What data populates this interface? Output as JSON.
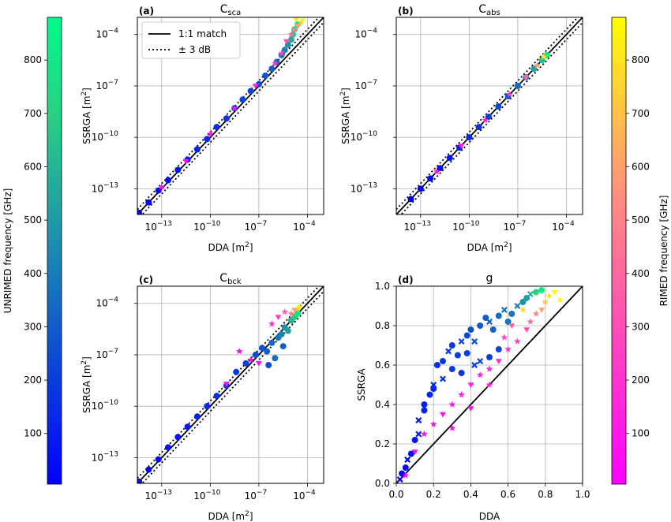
{
  "chart_data": [
    {
      "panel": "(a)",
      "type": "scatter",
      "title": "C",
      "title_sub": "sca",
      "xlabel": "DDA   [m",
      "xlabel_sup": "2",
      "ylabel": "SSRGA   [m",
      "ylabel_sup": "2",
      "scale": "log",
      "xlim": [
        -14.5,
        -3
      ],
      "ylim": [
        -14.5,
        -3
      ],
      "ticks": [
        {
          "exp": -13,
          "base": "10",
          "sup": "−13"
        },
        {
          "exp": -10,
          "base": "10",
          "sup": "−10"
        },
        {
          "exp": -7,
          "base": "10",
          "sup": "−7"
        },
        {
          "exp": -4,
          "base": "10",
          "sup": "−4"
        }
      ],
      "grid": true,
      "legend": {
        "position": "top-left",
        "entries": [
          {
            "label": "1:1 match",
            "style": "solid"
          },
          {
            "label": "± 3 dB",
            "style": "dotted"
          }
        ]
      },
      "series": [
        {
          "subset": "UNRIMED",
          "color_scale": "unrimed",
          "log10_points": [
            [
              -14.4,
              -14.4,
              5
            ],
            [
              -13.8,
              -13.8,
              20
            ],
            [
              -13.2,
              -13.1,
              35
            ],
            [
              -12.6,
              -12.5,
              50
            ],
            [
              -12.0,
              -11.9,
              70
            ],
            [
              -11.4,
              -11.3,
              90
            ],
            [
              -10.8,
              -10.7,
              110
            ],
            [
              -10.2,
              -10.1,
              130
            ],
            [
              -9.6,
              -9.4,
              150
            ],
            [
              -9.0,
              -8.9,
              170
            ],
            [
              -8.5,
              -8.3,
              190
            ],
            [
              -8.0,
              -7.8,
              210
            ],
            [
              -7.5,
              -7.3,
              230
            ],
            [
              -7.0,
              -6.9,
              250
            ],
            [
              -6.6,
              -6.4,
              270
            ],
            [
              -6.2,
              -6.0,
              300
            ],
            [
              -5.9,
              -5.6,
              330
            ],
            [
              -5.6,
              -5.2,
              370
            ],
            [
              -5.4,
              -4.9,
              420
            ],
            [
              -5.2,
              -4.6,
              480
            ],
            [
              -5.0,
              -4.3,
              560
            ],
            [
              -4.9,
              -4.0,
              640
            ],
            [
              -4.8,
              -3.7,
              740
            ],
            [
              -4.6,
              -3.4,
              840
            ]
          ]
        },
        {
          "subset": "RIMED",
          "color_scale": "rimed",
          "log10_points": [
            [
              -13.0,
              -12.9,
              30
            ],
            [
              -11.5,
              -11.4,
              60
            ],
            [
              -10.0,
              -9.8,
              90
            ],
            [
              -8.5,
              -8.3,
              120
            ],
            [
              -7.2,
              -7.0,
              160
            ],
            [
              -6.0,
              -5.7,
              200
            ],
            [
              -5.6,
              -5.1,
              260
            ],
            [
              -5.3,
              -4.4,
              320
            ],
            [
              -5.0,
              -4.0,
              400
            ],
            [
              -4.8,
              -3.7,
              500
            ],
            [
              -4.6,
              -3.5,
              600
            ],
            [
              -4.4,
              -3.3,
              700
            ],
            [
              -4.7,
              -3.1,
              800
            ],
            [
              -4.3,
              -3.2,
              860
            ]
          ]
        }
      ]
    },
    {
      "panel": "(b)",
      "type": "scatter",
      "title": "C",
      "title_sub": "abs",
      "xlabel": "DDA   [m",
      "xlabel_sup": "2",
      "ylabel": "SSRGA   [m",
      "ylabel_sup": "2",
      "scale": "log",
      "xlim": [
        -14.5,
        -3
      ],
      "ylim": [
        -14.5,
        -3
      ],
      "ticks": [
        {
          "exp": -13,
          "base": "10",
          "sup": "−13"
        },
        {
          "exp": -10,
          "base": "10",
          "sup": "−10"
        },
        {
          "exp": -7,
          "base": "10",
          "sup": "−7"
        },
        {
          "exp": -4,
          "base": "10",
          "sup": "−4"
        }
      ],
      "grid": true,
      "series": [
        {
          "subset": "UNRIMED",
          "color_scale": "unrimed",
          "log10_points": [
            [
              -13.6,
              -13.6,
              5
            ],
            [
              -13.0,
              -13.0,
              20
            ],
            [
              -12.4,
              -12.4,
              40
            ],
            [
              -11.8,
              -11.8,
              60
            ],
            [
              -11.2,
              -11.2,
              80
            ],
            [
              -10.6,
              -10.6,
              100
            ],
            [
              -10.0,
              -10.0,
              130
            ],
            [
              -9.4,
              -9.4,
              160
            ],
            [
              -8.8,
              -8.8,
              200
            ],
            [
              -8.2,
              -8.2,
              240
            ],
            [
              -7.6,
              -7.6,
              290
            ],
            [
              -7.0,
              -7.0,
              350
            ],
            [
              -6.5,
              -6.5,
              420
            ],
            [
              -6.0,
              -6.0,
              520
            ],
            [
              -5.5,
              -5.5,
              640
            ],
            [
              -5.2,
              -5.2,
              760
            ]
          ]
        },
        {
          "subset": "RIMED",
          "color_scale": "rimed",
          "log10_points": [
            [
              -12.0,
              -12.0,
              40
            ],
            [
              -10.5,
              -10.5,
              80
            ],
            [
              -9.0,
              -9.0,
              140
            ],
            [
              -7.5,
              -7.5,
              240
            ],
            [
              -6.5,
              -6.5,
              400
            ],
            [
              -5.8,
              -5.8,
              600
            ],
            [
              -5.4,
              -5.3,
              800
            ]
          ]
        }
      ]
    },
    {
      "panel": "(c)",
      "type": "scatter",
      "title": "C",
      "title_sub": "bck",
      "xlabel": "DDA   [m",
      "xlabel_sup": "2",
      "ylabel": "SSRGA   [m",
      "ylabel_sup": "2",
      "scale": "log",
      "xlim": [
        -14.5,
        -3
      ],
      "ylim": [
        -14.5,
        -3
      ],
      "ticks": [
        {
          "exp": -13,
          "base": "10",
          "sup": "−13"
        },
        {
          "exp": -10,
          "base": "10",
          "sup": "−10"
        },
        {
          "exp": -7,
          "base": "10",
          "sup": "−7"
        },
        {
          "exp": -4,
          "base": "10",
          "sup": "−4"
        }
      ],
      "grid": true,
      "series": [
        {
          "subset": "UNRIMED",
          "color_scale": "unrimed",
          "log10_points": [
            [
              -14.4,
              -14.4,
              5
            ],
            [
              -13.8,
              -13.7,
              20
            ],
            [
              -13.2,
              -13.1,
              35
            ],
            [
              -12.6,
              -12.4,
              50
            ],
            [
              -12.0,
              -11.8,
              70
            ],
            [
              -11.4,
              -11.2,
              90
            ],
            [
              -10.8,
              -10.6,
              110
            ],
            [
              -10.2,
              -10.0,
              130
            ],
            [
              -9.6,
              -9.4,
              150
            ],
            [
              -9.0,
              -8.8,
              170
            ],
            [
              -8.4,
              -8.0,
              190
            ],
            [
              -7.8,
              -7.5,
              210
            ],
            [
              -7.2,
              -7.0,
              240
            ],
            [
              -6.8,
              -6.6,
              270
            ],
            [
              -6.5,
              -6.8,
              300
            ],
            [
              -6.2,
              -6.3,
              330
            ],
            [
              -6.0,
              -7.2,
              360
            ],
            [
              -5.8,
              -6.0,
              390
            ],
            [
              -5.6,
              -5.8,
              420
            ],
            [
              -5.4,
              -5.4,
              470
            ],
            [
              -5.2,
              -5.6,
              520
            ],
            [
              -5.0,
              -5.0,
              600
            ],
            [
              -4.8,
              -4.8,
              680
            ],
            [
              -4.6,
              -4.6,
              760
            ],
            [
              -5.5,
              -6.5,
              300
            ],
            [
              -6.4,
              -7.6,
              250
            ]
          ]
        },
        {
          "subset": "RIMED",
          "color_scale": "rimed",
          "log10_points": [
            [
              -7.5,
              -7.3,
              40
            ],
            [
              -7.0,
              -7.5,
              80
            ],
            [
              -8.2,
              -6.8,
              30
            ],
            [
              -6.2,
              -5.2,
              160
            ],
            [
              -5.8,
              -4.8,
              240
            ],
            [
              -5.4,
              -4.5,
              360
            ],
            [
              -5.0,
              -4.6,
              480
            ],
            [
              -4.8,
              -4.4,
              600
            ],
            [
              -4.6,
              -4.3,
              720
            ],
            [
              -4.5,
              -4.2,
              840
            ],
            [
              -9.0,
              -8.7,
              50
            ]
          ]
        }
      ]
    },
    {
      "panel": "(d)",
      "type": "scatter",
      "title": "g",
      "title_sub": "",
      "xlabel": "DDA",
      "xlabel_sup": "",
      "ylabel": "SSRGA",
      "ylabel_sup": "",
      "scale": "linear",
      "xlim": [
        0.0,
        1.0
      ],
      "ylim": [
        0.0,
        1.0
      ],
      "xticks": [
        "0.0",
        "0.2",
        "0.4",
        "0.6",
        "0.8",
        "1.0"
      ],
      "yticks": [
        "0.0",
        "0.2",
        "0.4",
        "0.6",
        "0.8",
        "1.0"
      ],
      "grid": true,
      "series": [
        {
          "subset": "UNRIMED",
          "color_scale": "unrimed",
          "points": [
            [
              0.02,
              0.02,
              20
            ],
            [
              0.03,
              0.05,
              30
            ],
            [
              0.05,
              0.08,
              40
            ],
            [
              0.06,
              0.12,
              50
            ],
            [
              0.08,
              0.15,
              60
            ],
            [
              0.1,
              0.22,
              70
            ],
            [
              0.12,
              0.25,
              90
            ],
            [
              0.15,
              0.37,
              110
            ],
            [
              0.18,
              0.45,
              130
            ],
            [
              0.2,
              0.5,
              140
            ],
            [
              0.22,
              0.6,
              150
            ],
            [
              0.25,
              0.62,
              170
            ],
            [
              0.28,
              0.67,
              180
            ],
            [
              0.3,
              0.7,
              190
            ],
            [
              0.33,
              0.65,
              200
            ],
            [
              0.35,
              0.72,
              220
            ],
            [
              0.38,
              0.75,
              230
            ],
            [
              0.4,
              0.78,
              250
            ],
            [
              0.42,
              0.72,
              260
            ],
            [
              0.45,
              0.8,
              280
            ],
            [
              0.48,
              0.84,
              300
            ],
            [
              0.5,
              0.82,
              310
            ],
            [
              0.52,
              0.78,
              320
            ],
            [
              0.55,
              0.85,
              340
            ],
            [
              0.58,
              0.88,
              360
            ],
            [
              0.6,
              0.82,
              370
            ],
            [
              0.62,
              0.86,
              380
            ],
            [
              0.65,
              0.9,
              410
            ],
            [
              0.68,
              0.92,
              460
            ],
            [
              0.7,
              0.94,
              520
            ],
            [
              0.72,
              0.96,
              600
            ],
            [
              0.75,
              0.97,
              700
            ],
            [
              0.78,
              0.98,
              800
            ],
            [
              0.45,
              0.62,
              220
            ],
            [
              0.5,
              0.64,
              200
            ],
            [
              0.55,
              0.68,
              230
            ],
            [
              0.42,
              0.6,
              190
            ],
            [
              0.38,
              0.66,
              210
            ],
            [
              0.3,
              0.58,
              180
            ],
            [
              0.25,
              0.53,
              150
            ],
            [
              0.2,
              0.48,
              130
            ],
            [
              0.15,
              0.4,
              100
            ],
            [
              0.12,
              0.32,
              80
            ],
            [
              0.35,
              0.56,
              160
            ]
          ]
        },
        {
          "subset": "RIMED",
          "color_scale": "rimed",
          "points": [
            [
              0.05,
              0.04,
              20
            ],
            [
              0.1,
              0.16,
              40
            ],
            [
              0.15,
              0.25,
              50
            ],
            [
              0.2,
              0.3,
              60
            ],
            [
              0.25,
              0.35,
              70
            ],
            [
              0.3,
              0.4,
              80
            ],
            [
              0.35,
              0.45,
              90
            ],
            [
              0.4,
              0.5,
              100
            ],
            [
              0.45,
              0.55,
              120
            ],
            [
              0.5,
              0.58,
              130
            ],
            [
              0.55,
              0.62,
              150
            ],
            [
              0.6,
              0.68,
              180
            ],
            [
              0.65,
              0.72,
              220
            ],
            [
              0.7,
              0.78,
              300
            ],
            [
              0.72,
              0.82,
              400
            ],
            [
              0.75,
              0.86,
              500
            ],
            [
              0.78,
              0.88,
              600
            ],
            [
              0.8,
              0.92,
              700
            ],
            [
              0.82,
              0.95,
              800
            ],
            [
              0.85,
              0.97,
              860
            ],
            [
              0.88,
              0.93,
              850
            ],
            [
              0.68,
              0.88,
              760
            ],
            [
              0.62,
              0.8,
              360
            ],
            [
              0.58,
              0.74,
              260
            ],
            [
              0.5,
              0.5,
              90
            ],
            [
              0.4,
              0.38,
              60
            ],
            [
              0.3,
              0.28,
              50
            ]
          ]
        }
      ]
    }
  ],
  "colorbar_left": {
    "label": "UNRIMED    frequency [GHz]",
    "ticks": [
      "100",
      "200",
      "300",
      "400",
      "500",
      "600",
      "700",
      "800"
    ],
    "range": [
      5,
      880
    ]
  },
  "colorbar_right": {
    "label": "RIMED    frequency [GHz]",
    "ticks": [
      "100",
      "200",
      "300",
      "400",
      "500",
      "600",
      "700",
      "800"
    ],
    "range": [
      5,
      880
    ]
  }
}
